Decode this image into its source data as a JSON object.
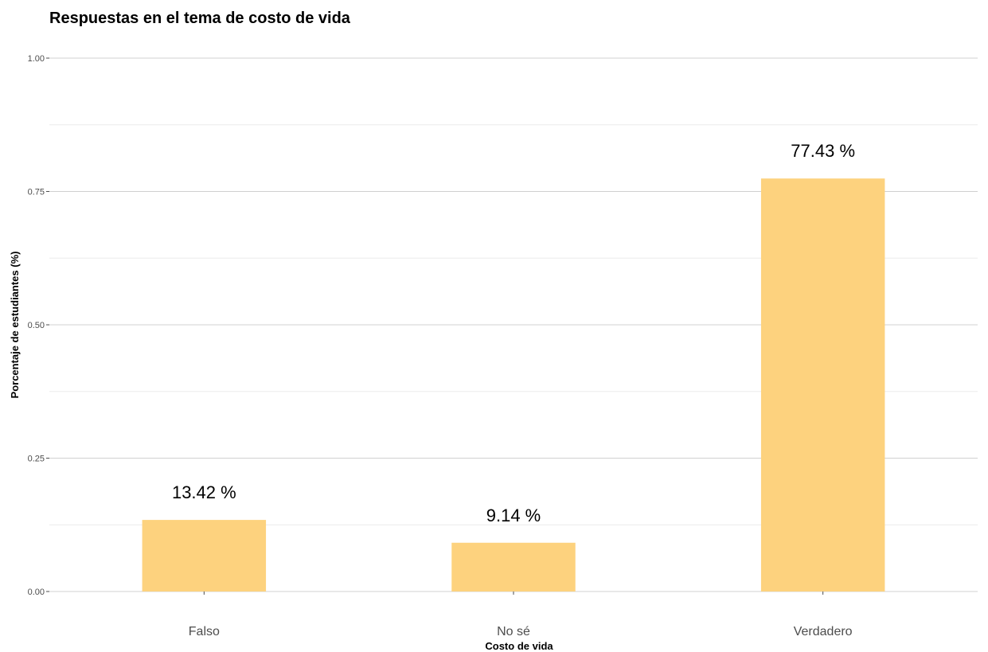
{
  "chart_data": {
    "type": "bar",
    "title": "Respuestas en el tema de costo de vida",
    "xlabel": "Costo de vida",
    "ylabel": "Porcentaje de estudiantes (%)",
    "categories": [
      "Falso",
      "No sé",
      "Verdadero"
    ],
    "values": [
      0.1342,
      0.0914,
      0.7743
    ],
    "data_labels": [
      "13.42 %",
      "9.14 %",
      "77.43 %"
    ],
    "ylim": [
      0,
      1
    ],
    "yticks": [
      0,
      0.25,
      0.5,
      0.75,
      1
    ],
    "ytick_labels": [
      "0.00",
      "0.25",
      "0.50",
      "0.75",
      "1.00"
    ],
    "grid": true,
    "legend": "none",
    "bar_color": "#fdd27e"
  }
}
